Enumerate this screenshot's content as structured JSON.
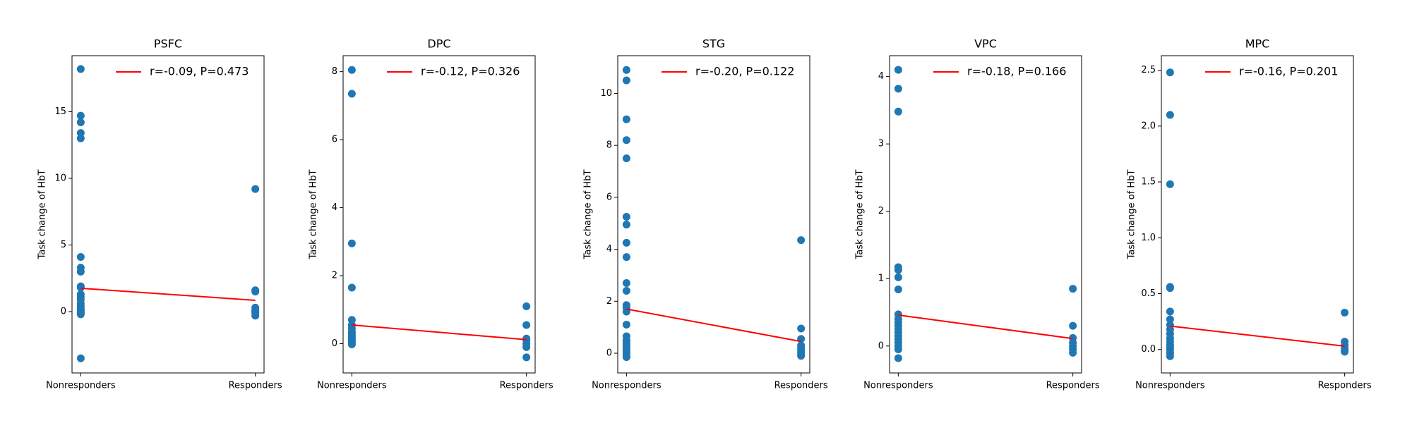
{
  "chart_data": [
    {
      "type": "scatter",
      "title": "PSFC",
      "ylabel": "Task change of HbT",
      "legend": "upper right",
      "xlim": [
        -0.05,
        1.05
      ],
      "xticks": [
        {
          "value": 0,
          "label": "Nonresponders"
        },
        {
          "value": 1,
          "label": "Responders"
        }
      ],
      "ylim": [
        -4.6,
        19.2
      ],
      "yticks": [
        0,
        5,
        10,
        15
      ],
      "series": [
        {
          "mode": "markers",
          "color": "#1f77b4",
          "x": [
            0,
            0,
            0,
            0,
            0,
            0,
            0,
            0,
            0,
            0,
            0,
            0,
            0,
            0,
            0,
            0,
            0,
            0,
            0,
            0,
            0,
            1,
            1,
            1,
            1,
            1,
            1,
            1,
            1
          ],
          "values": [
            18.2,
            14.7,
            14.2,
            13.4,
            13.0,
            4.1,
            3.3,
            3.0,
            1.9,
            1.8,
            1.3,
            1.1,
            0.9,
            0.6,
            0.4,
            0.2,
            0.1,
            0.0,
            -0.1,
            -0.2,
            -3.5,
            9.2,
            1.6,
            1.5,
            0.3,
            0.1,
            0.0,
            -0.1,
            -0.3
          ]
        },
        {
          "mode": "line",
          "name": "r=-0.09, P=0.473",
          "color": "#ff0000",
          "x": [
            0,
            1
          ],
          "values": [
            1.75,
            0.85
          ]
        }
      ]
    },
    {
      "type": "scatter",
      "title": "DPC",
      "ylabel": "Task change of HbT",
      "legend": "upper right",
      "xlim": [
        -0.05,
        1.05
      ],
      "xticks": [
        {
          "value": 0,
          "label": "Nonresponders"
        },
        {
          "value": 1,
          "label": "Responders"
        }
      ],
      "ylim": [
        -0.86,
        8.47
      ],
      "yticks": [
        0,
        2,
        4,
        6,
        8
      ],
      "series": [
        {
          "mode": "markers",
          "color": "#1f77b4",
          "x": [
            0,
            0,
            0,
            0,
            0,
            0,
            0,
            0,
            0,
            0,
            0,
            0,
            0,
            0,
            0,
            0,
            1,
            1,
            1,
            1,
            1,
            1,
            1
          ],
          "values": [
            8.05,
            7.35,
            2.95,
            1.65,
            0.7,
            0.55,
            0.45,
            0.35,
            0.3,
            0.25,
            0.2,
            0.15,
            0.1,
            0.05,
            0.0,
            -0.02,
            1.1,
            0.55,
            0.15,
            0.1,
            0.0,
            -0.1,
            -0.4
          ]
        },
        {
          "mode": "line",
          "name": "r=-0.12, P=0.326",
          "color": "#ff0000",
          "x": [
            0,
            1
          ],
          "values": [
            0.55,
            0.12
          ]
        }
      ]
    },
    {
      "type": "scatter",
      "title": "STG",
      "ylabel": "Task change of HbT",
      "legend": "upper right",
      "xlim": [
        -0.05,
        1.05
      ],
      "xticks": [
        {
          "value": 0,
          "label": "Nonresponders"
        },
        {
          "value": 1,
          "label": "Responders"
        }
      ],
      "ylim": [
        -0.76,
        11.45
      ],
      "yticks": [
        0,
        2,
        4,
        6,
        8,
        10
      ],
      "series": [
        {
          "mode": "markers",
          "color": "#1f77b4",
          "x": [
            0,
            0,
            0,
            0,
            0,
            0,
            0,
            0,
            0,
            0,
            0,
            0,
            0,
            0,
            0,
            0,
            0,
            0,
            0,
            0,
            0,
            0,
            0,
            0,
            1,
            1,
            1,
            1,
            1,
            1,
            1,
            1
          ],
          "values": [
            10.9,
            10.5,
            9.0,
            8.2,
            7.5,
            5.25,
            4.95,
            4.25,
            3.7,
            2.7,
            2.4,
            1.85,
            1.75,
            1.6,
            1.1,
            0.65,
            0.5,
            0.4,
            0.3,
            0.2,
            0.1,
            0.0,
            -0.1,
            -0.15,
            4.35,
            0.95,
            0.55,
            0.3,
            0.2,
            0.1,
            0.0,
            -0.1
          ]
        },
        {
          "mode": "line",
          "name": "r=-0.20, P=0.122",
          "color": "#ff0000",
          "x": [
            0,
            1
          ],
          "values": [
            1.7,
            0.45
          ]
        }
      ]
    },
    {
      "type": "scatter",
      "title": "VPC",
      "ylabel": "Task change of HbT",
      "legend": "upper right",
      "xlim": [
        -0.05,
        1.05
      ],
      "xticks": [
        {
          "value": 0,
          "label": "Nonresponders"
        },
        {
          "value": 1,
          "label": "Responders"
        }
      ],
      "ylim": [
        -0.4,
        4.31
      ],
      "yticks": [
        0,
        1,
        2,
        3,
        4
      ],
      "series": [
        {
          "mode": "markers",
          "color": "#1f77b4",
          "x": [
            0,
            0,
            0,
            0,
            0,
            0,
            0,
            0,
            0,
            0,
            0,
            0,
            0,
            0,
            0,
            0,
            0,
            0,
            0,
            1,
            1,
            1,
            1,
            1,
            1,
            1
          ],
          "values": [
            4.1,
            3.82,
            3.48,
            1.17,
            1.13,
            1.02,
            0.84,
            0.47,
            0.4,
            0.35,
            0.3,
            0.25,
            0.2,
            0.15,
            0.1,
            0.05,
            0.0,
            -0.05,
            -0.18,
            0.85,
            0.3,
            0.12,
            0.05,
            0.0,
            -0.05,
            -0.1
          ]
        },
        {
          "mode": "line",
          "name": "r=-0.18, P=0.166",
          "color": "#ff0000",
          "x": [
            0,
            1
          ],
          "values": [
            0.46,
            0.11
          ]
        }
      ]
    },
    {
      "type": "scatter",
      "title": "MPC",
      "ylabel": "Task change of HbT",
      "legend": "upper right",
      "xlim": [
        -0.05,
        1.05
      ],
      "xticks": [
        {
          "value": 0,
          "label": "Nonresponders"
        },
        {
          "value": 1,
          "label": "Responders"
        }
      ],
      "ylim": [
        -0.21,
        2.63
      ],
      "yticks": [
        {
          "value": 0,
          "label": "0.0"
        },
        0.5,
        {
          "value": 1,
          "label": "1.0"
        },
        1.5,
        {
          "value": 2,
          "label": "2.0"
        },
        2.5
      ],
      "series": [
        {
          "mode": "markers",
          "color": "#1f77b4",
          "x": [
            0,
            0,
            0,
            0,
            0,
            0,
            0,
            0,
            0,
            0,
            0,
            0,
            0,
            0,
            0,
            0,
            0,
            1,
            1,
            1,
            1,
            1,
            1
          ],
          "values": [
            2.48,
            2.1,
            1.48,
            0.56,
            0.55,
            0.34,
            0.27,
            0.22,
            0.18,
            0.14,
            0.1,
            0.07,
            0.04,
            0.02,
            0.0,
            -0.03,
            -0.06,
            0.33,
            0.07,
            0.04,
            0.01,
            -0.01,
            -0.02
          ]
        },
        {
          "mode": "line",
          "name": "r=-0.16, P=0.201",
          "color": "#ff0000",
          "x": [
            0,
            1
          ],
          "values": [
            0.21,
            0.03
          ]
        }
      ]
    }
  ]
}
